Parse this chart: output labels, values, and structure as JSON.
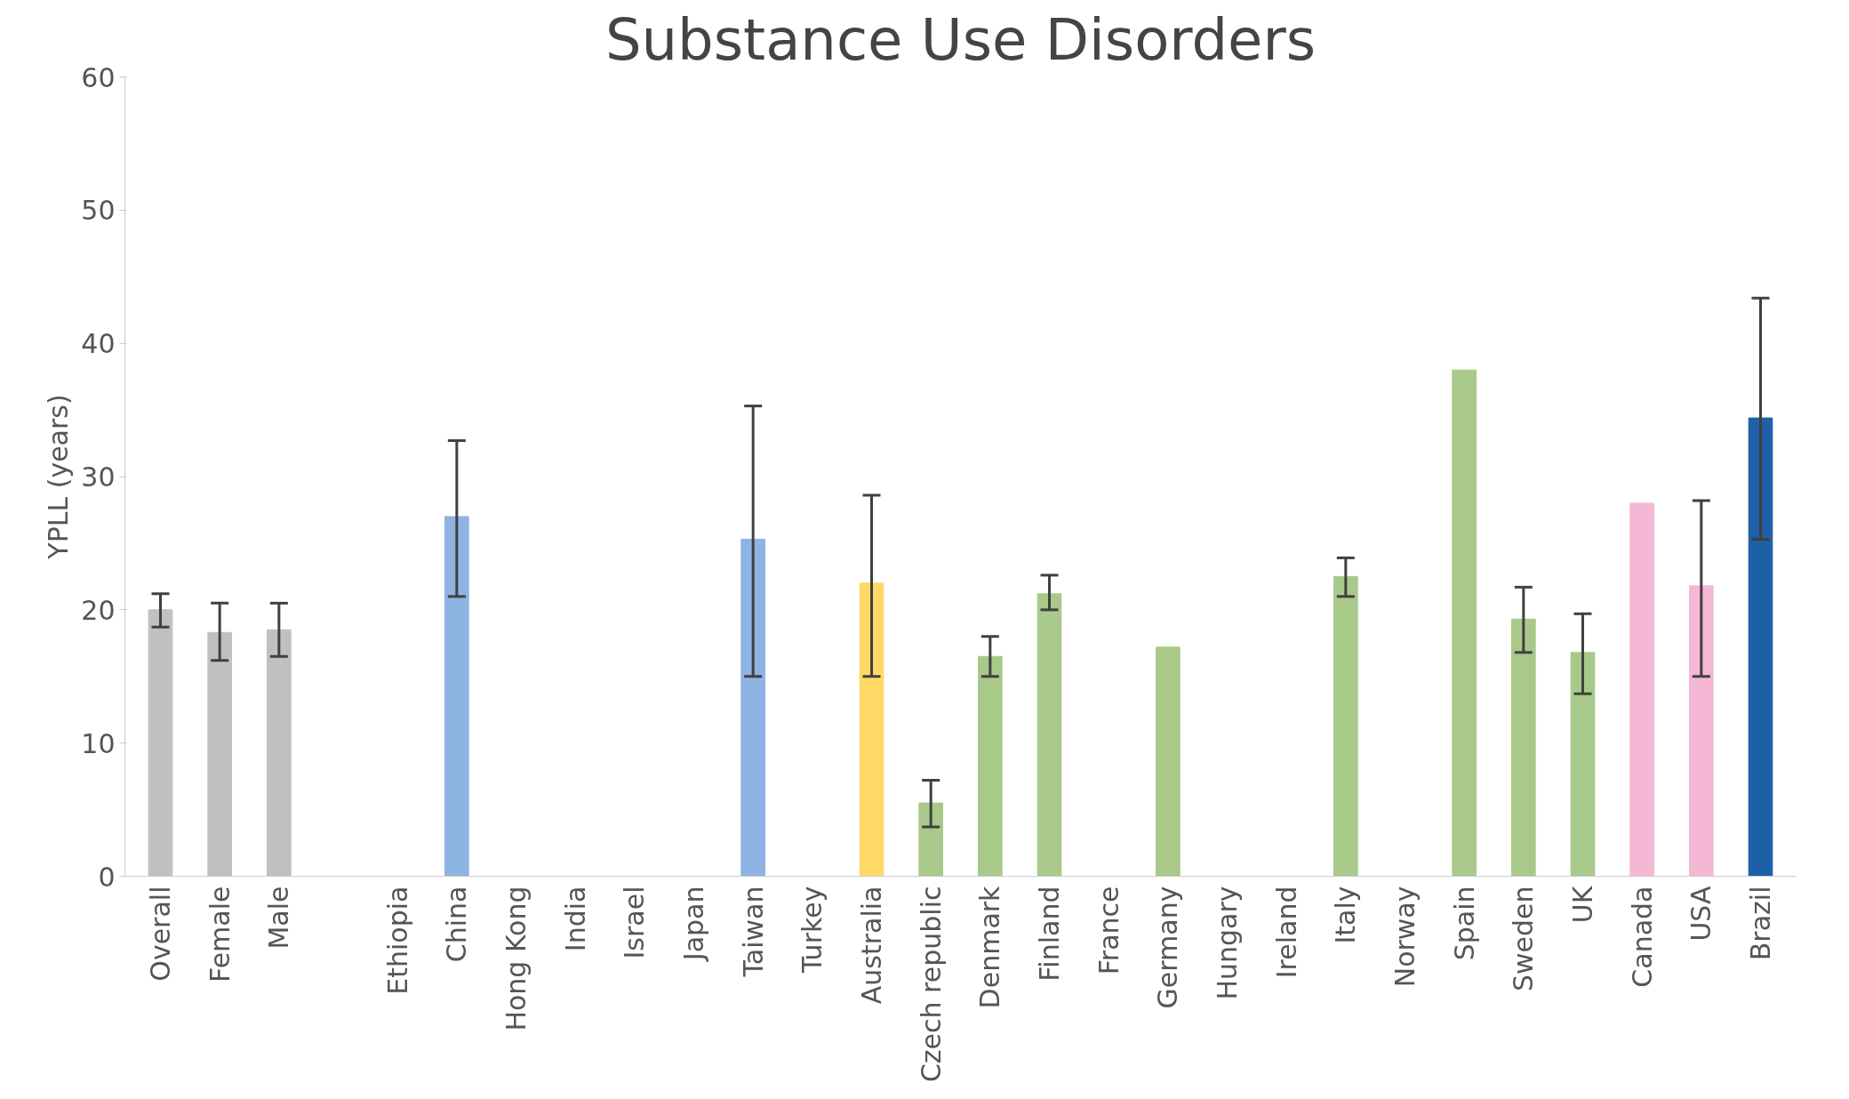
{
  "chart_data": {
    "type": "bar",
    "title": "Substance Use Disorders",
    "ylabel": "YPLL (years)",
    "categories": [
      "Overall",
      "Female",
      "Male",
      null,
      "Ethiopia",
      "China",
      "Hong Kong",
      "India",
      "Israel",
      "Japan",
      "Taiwan",
      "Turkey",
      "Australia",
      "Czech republic",
      "Denmark",
      "Finland",
      "France",
      "Germany",
      "Hungary",
      "Ireland",
      "Italy",
      "Norway",
      "Spain",
      "Sweden",
      "UK",
      "Canada",
      "USA",
      "Brazil"
    ],
    "values": [
      20,
      18.3,
      18.5,
      null,
      null,
      27,
      null,
      null,
      null,
      null,
      25.3,
      null,
      22,
      5.5,
      16.5,
      21.2,
      null,
      17.2,
      null,
      null,
      22.5,
      null,
      38,
      19.3,
      16.8,
      28,
      21.8,
      34.4
    ],
    "errors": [
      [
        18.7,
        21.2
      ],
      [
        16.2,
        20.5
      ],
      [
        16.5,
        20.5
      ],
      null,
      null,
      [
        21,
        32.7
      ],
      null,
      null,
      null,
      null,
      [
        15,
        35.3
      ],
      null,
      [
        15,
        28.6
      ],
      [
        3.7,
        7.2
      ],
      [
        15,
        18
      ],
      [
        20,
        22.6
      ],
      null,
      null,
      null,
      null,
      [
        21,
        23.9
      ],
      null,
      null,
      [
        16.8,
        21.7
      ],
      [
        13.7,
        19.7
      ],
      null,
      [
        15,
        28.2
      ],
      [
        25.3,
        43.4
      ]
    ],
    "colors": [
      "#c0c0c0",
      "#c0c0c0",
      "#c0c0c0",
      "#c0c0c0",
      "#8db4e2",
      "#8db4e2",
      "#8db4e2",
      "#8db4e2",
      "#8db4e2",
      "#8db4e2",
      "#8db4e2",
      "#8db4e2",
      "#ffd966",
      "#a9c98a",
      "#a9c98a",
      "#a9c98a",
      "#a9c98a",
      "#a9c98a",
      "#a9c98a",
      "#a9c98a",
      "#a9c98a",
      "#a9c98a",
      "#a9c98a",
      "#a9c98a",
      "#a9c98a",
      "#f4b8d4",
      "#f4b8d4",
      "#1f5fa8"
    ],
    "ylim": [
      0,
      60
    ],
    "yticks": [
      0,
      10,
      20,
      30,
      40,
      50,
      60
    ],
    "grid": false
  }
}
